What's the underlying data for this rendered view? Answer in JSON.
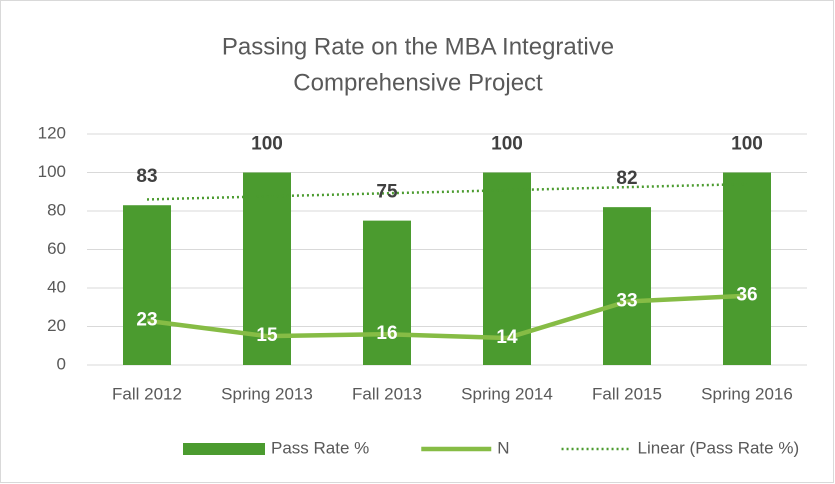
{
  "chart_data": {
    "type": "bar",
    "title": [
      "Passing Rate on the MBA Integrative",
      "Comprehensive Project"
    ],
    "categories": [
      "Fall 2012",
      "Spring 2013",
      "Fall 2013",
      "Spring 2014",
      "Fall 2015",
      "Spring 2016"
    ],
    "series": [
      {
        "name": "Pass Rate %",
        "type": "bar",
        "color": "#4b9b2f",
        "values": [
          83,
          100,
          75,
          100,
          82,
          100
        ]
      },
      {
        "name": "N",
        "type": "line",
        "color": "#86bc45",
        "values": [
          23,
          15,
          16,
          14,
          33,
          36
        ]
      },
      {
        "name": "Linear (Pass Rate %)",
        "type": "trendline",
        "color": "#4b9b2f",
        "values": [
          86,
          87.6,
          89.2,
          90.8,
          92.4,
          94
        ]
      }
    ],
    "ylim": [
      0,
      120
    ],
    "yticks": [
      0,
      20,
      40,
      60,
      80,
      100,
      120
    ],
    "grid": true,
    "legend": "bottom"
  }
}
